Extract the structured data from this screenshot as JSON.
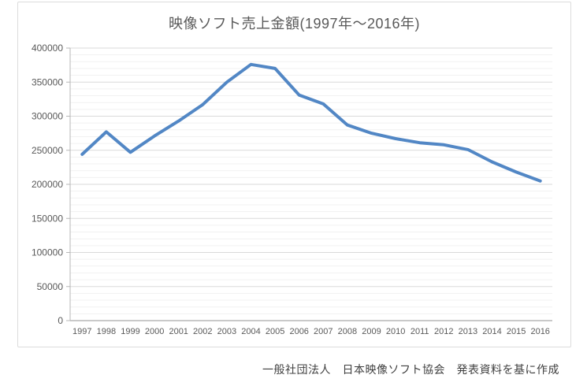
{
  "chart_data": {
    "type": "line",
    "title": "映像ソフト売上金額(1997年～2016年)",
    "categories": [
      "1997",
      "1998",
      "1999",
      "2000",
      "2001",
      "2002",
      "2003",
      "2004",
      "2005",
      "2006",
      "2007",
      "2008",
      "2009",
      "2010",
      "2011",
      "2012",
      "2013",
      "2014",
      "2015",
      "2016"
    ],
    "values": [
      244000,
      277000,
      247000,
      271000,
      293000,
      317000,
      350000,
      376000,
      370000,
      331000,
      318000,
      287000,
      275000,
      267000,
      261000,
      258000,
      251000,
      233000,
      218000,
      205000
    ],
    "xlabel": "",
    "ylabel": "",
    "ylim": [
      0,
      400000
    ],
    "y_tick_step": 50000,
    "y_minor_step": 10000,
    "y_tick_labels": [
      "0",
      "50000",
      "100000",
      "150000",
      "200000",
      "250000",
      "300000",
      "350000",
      "400000"
    ],
    "grid": "on",
    "legend": "none",
    "line_color": "#5287c5",
    "major_grid_color": "#dadada",
    "minor_grid_color": "#f1f1f1",
    "axis_color": "#b7b7b7",
    "label_color": "#595959"
  },
  "source_note": "一般社団法人　日本映像ソフト協会　発表資料を基に作成"
}
